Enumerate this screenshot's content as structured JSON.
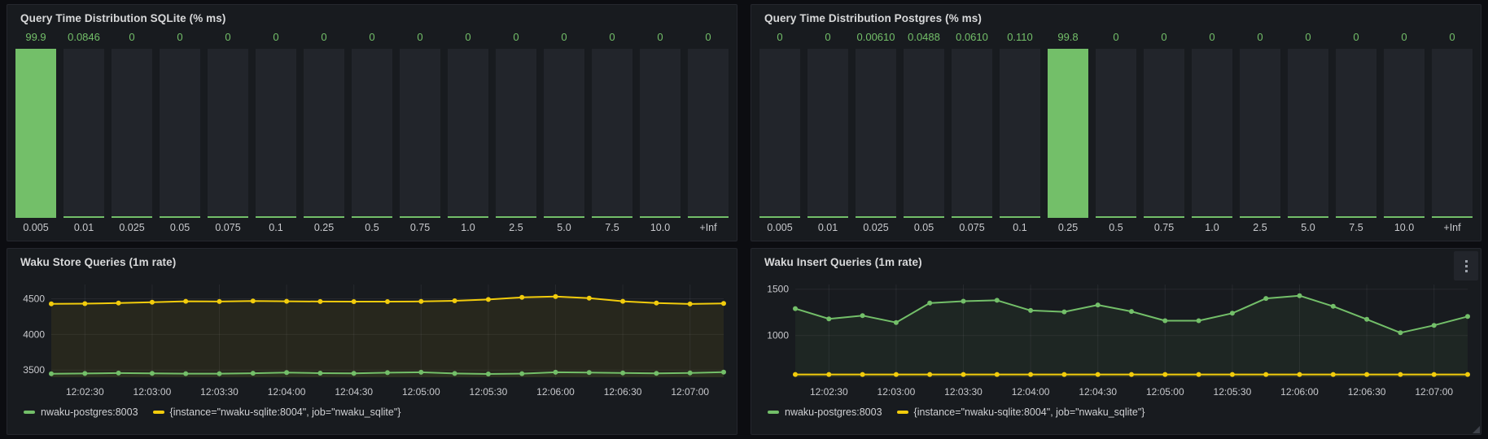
{
  "colors": {
    "green": "#73bf69",
    "yellow": "#f2cc0c",
    "panel_background": "#181b1f",
    "page_background": "#0c0d11",
    "bar_background": "#22252b",
    "gridline": "rgba(204,204,220,0.08)",
    "axis_text": "#c8c9cd",
    "title_text": "#d8d9da"
  },
  "chart_data": [
    {
      "id": "sqlite-histogram",
      "type": "bar",
      "title": "Query Time Distribution SQLite (% ms)",
      "categories": [
        "0.005",
        "0.01",
        "0.025",
        "0.05",
        "0.075",
        "0.1",
        "0.25",
        "0.5",
        "0.75",
        "1.0",
        "2.5",
        "5.0",
        "7.5",
        "10.0",
        "+Inf"
      ],
      "values": [
        99.9,
        0.0846,
        0,
        0,
        0,
        0,
        0,
        0,
        0,
        0,
        0,
        0,
        0,
        0,
        0
      ],
      "value_labels": [
        "99.9",
        "0.0846",
        "0",
        "0",
        "0",
        "0",
        "0",
        "0",
        "0",
        "0",
        "0",
        "0",
        "0",
        "0",
        "0"
      ],
      "ylim": [
        0,
        100
      ],
      "bar_color": "#73bf69",
      "grid": false,
      "legend": "none"
    },
    {
      "id": "postgres-histogram",
      "type": "bar",
      "title": "Query Time Distribution Postgres (% ms)",
      "categories": [
        "0.005",
        "0.01",
        "0.025",
        "0.05",
        "0.075",
        "0.1",
        "0.25",
        "0.5",
        "0.75",
        "1.0",
        "2.5",
        "5.0",
        "7.5",
        "10.0",
        "+Inf"
      ],
      "values": [
        0,
        0,
        0.0061,
        0.0488,
        0.061,
        0.11,
        99.8,
        0,
        0,
        0,
        0,
        0,
        0,
        0,
        0
      ],
      "value_labels": [
        "0",
        "0",
        "0.00610",
        "0.0488",
        "0.0610",
        "0.110",
        "99.8",
        "0",
        "0",
        "0",
        "0",
        "0",
        "0",
        "0",
        "0"
      ],
      "ylim": [
        0,
        100
      ],
      "bar_color": "#73bf69",
      "grid": false,
      "legend": "none"
    },
    {
      "id": "store-queries",
      "type": "line",
      "title": "Waku Store Queries (1m rate)",
      "x": [
        "12:02:15",
        "12:02:30",
        "12:02:45",
        "12:03:00",
        "12:03:15",
        "12:03:30",
        "12:03:45",
        "12:04:00",
        "12:04:15",
        "12:04:30",
        "12:04:45",
        "12:05:00",
        "12:05:15",
        "12:05:30",
        "12:05:45",
        "12:06:00",
        "12:06:15",
        "12:06:30",
        "12:06:45",
        "12:07:00",
        "12:07:15"
      ],
      "xticks": [
        "12:02:30",
        "12:03:00",
        "12:03:30",
        "12:04:00",
        "12:04:30",
        "12:05:00",
        "12:05:30",
        "12:06:00",
        "12:06:30",
        "12:07:00"
      ],
      "yticks": [
        3500,
        4000,
        4500
      ],
      "ylim": [
        3400,
        4700
      ],
      "grid": true,
      "legend_position": "bottom",
      "series": [
        {
          "name": "nwaku-postgres:8003",
          "color": "#73bf69",
          "values": [
            3448,
            3452,
            3458,
            3454,
            3450,
            3450,
            3456,
            3466,
            3457,
            3454,
            3464,
            3470,
            3452,
            3446,
            3450,
            3469,
            3465,
            3459,
            3455,
            3460,
            3472
          ]
        },
        {
          "name": "{instance=\"nwaku-sqlite:8004\", job=\"nwaku_sqlite\"}",
          "color": "#f2cc0c",
          "values": [
            4430,
            4432,
            4440,
            4452,
            4465,
            4462,
            4470,
            4465,
            4462,
            4460,
            4460,
            4463,
            4472,
            4490,
            4520,
            4532,
            4508,
            4465,
            4440,
            4428,
            4435
          ]
        }
      ]
    },
    {
      "id": "insert-queries",
      "type": "line",
      "title": "Waku Insert Queries (1m rate)",
      "x": [
        "12:02:15",
        "12:02:30",
        "12:02:45",
        "12:03:00",
        "12:03:15",
        "12:03:30",
        "12:03:45",
        "12:04:00",
        "12:04:15",
        "12:04:30",
        "12:04:45",
        "12:05:00",
        "12:05:15",
        "12:05:30",
        "12:05:45",
        "12:06:00",
        "12:06:15",
        "12:06:30",
        "12:06:45",
        "12:07:00",
        "12:07:15"
      ],
      "xticks": [
        "12:02:30",
        "12:03:00",
        "12:03:30",
        "12:04:00",
        "12:04:30",
        "12:05:00",
        "12:05:30",
        "12:06:00",
        "12:06:30",
        "12:07:00"
      ],
      "yticks": [
        1000,
        1500
      ],
      "ylim": [
        550,
        1550
      ],
      "grid": true,
      "legend_position": "bottom",
      "series": [
        {
          "name": "nwaku-postgres:8003",
          "color": "#73bf69",
          "values": [
            1290,
            1180,
            1215,
            1140,
            1350,
            1370,
            1380,
            1270,
            1255,
            1330,
            1260,
            1160,
            1160,
            1240,
            1400,
            1430,
            1315,
            1175,
            1030,
            1110,
            1205
          ]
        },
        {
          "name": "{instance=\"nwaku-sqlite:8004\", job=\"nwaku_sqlite\"}",
          "color": "#f2cc0c",
          "values": [
            580,
            580,
            580,
            580,
            580,
            580,
            580,
            580,
            580,
            580,
            580,
            580,
            580,
            580,
            580,
            580,
            580,
            580,
            580,
            580,
            580
          ]
        }
      ]
    }
  ]
}
